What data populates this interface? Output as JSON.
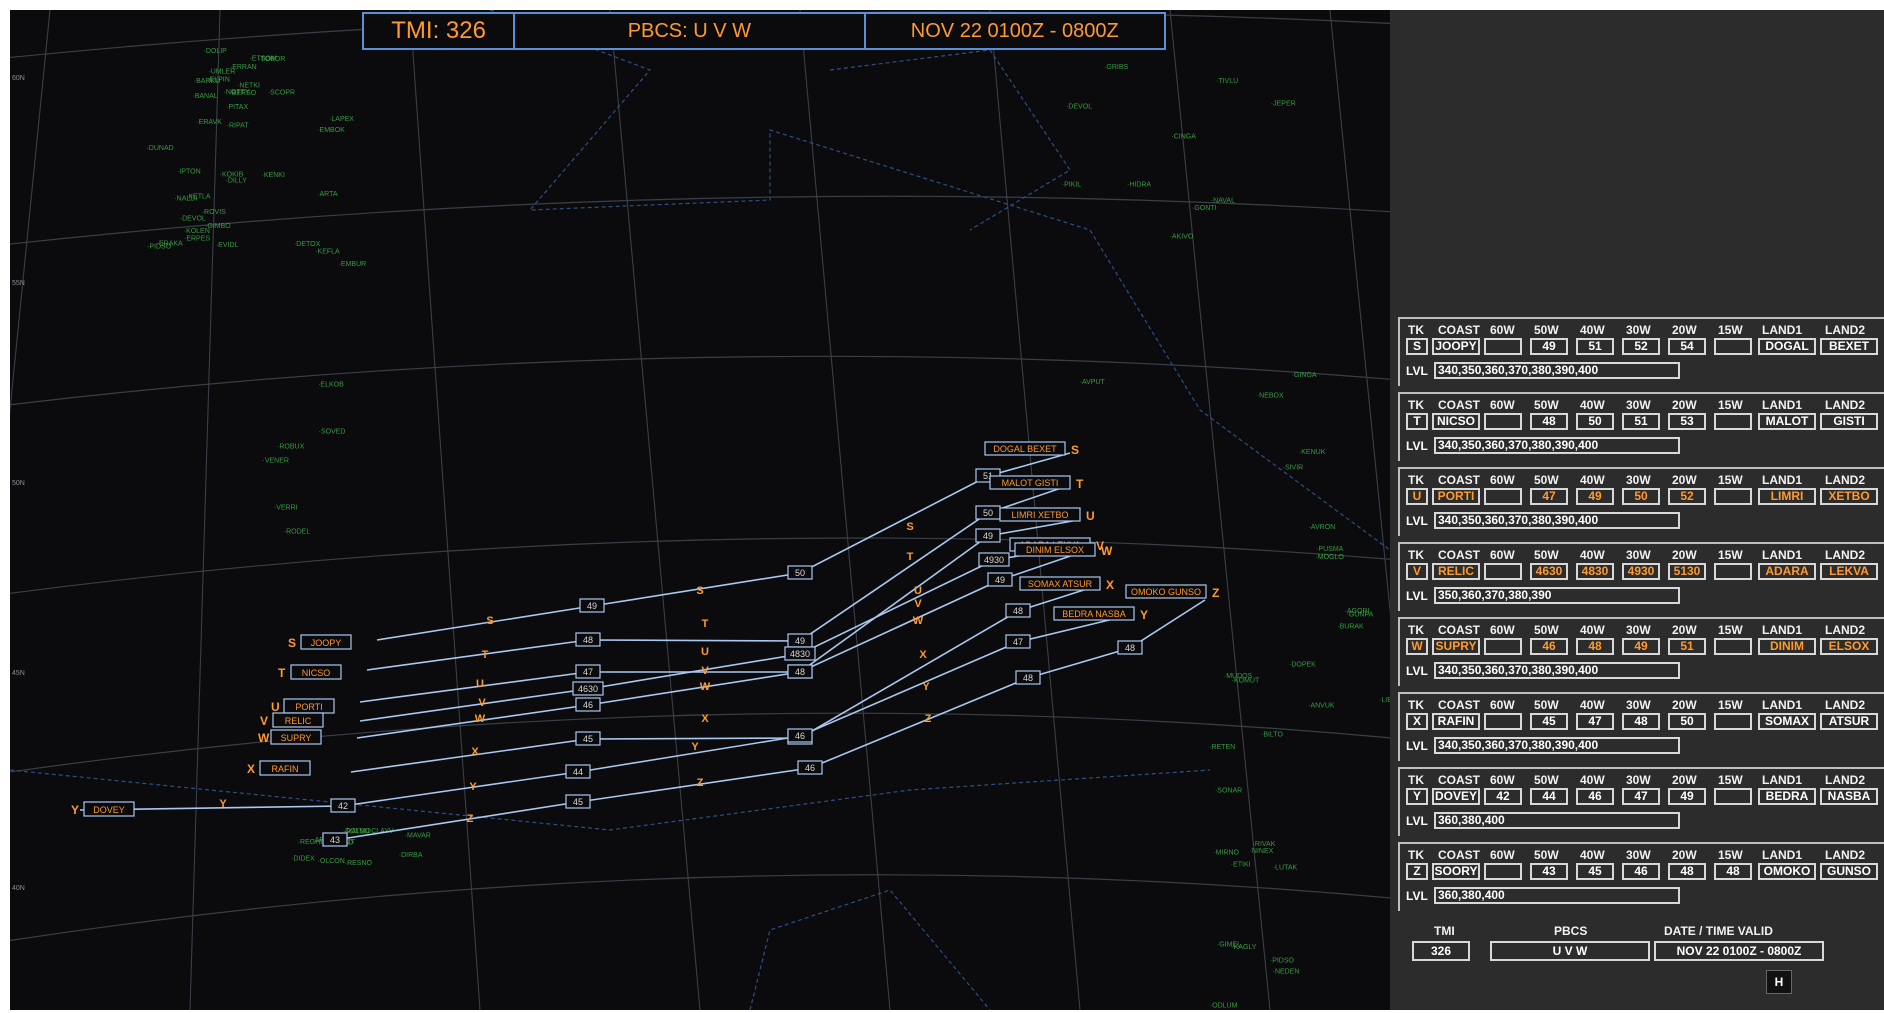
{
  "header": {
    "tmi": "TMI: 326",
    "pbcs": "PBCS:  U V W",
    "date": "NOV 22    0100Z - 0800Z"
  },
  "colors": {
    "route": "#a9c8f0",
    "accent": "#ff9a2e",
    "grid": "#3a3f47",
    "fix": "#3fb34a"
  },
  "lat_labels": [
    "60N",
    "55N",
    "50N",
    "45N",
    "40N"
  ],
  "map_tracks": [
    {
      "id": "S",
      "coast": "JOOPY",
      "fl": [
        "49",
        "50",
        "51",
        "52",
        "54"
      ],
      "land": "DOGAL  BEXET",
      "hl": false
    },
    {
      "id": "T",
      "coast": "NICSO",
      "fl": [
        "48",
        "49",
        "50",
        "51",
        "53"
      ],
      "land": "MALOT  GISTI",
      "hl": false
    },
    {
      "id": "U",
      "coast": "PORTI",
      "fl": [
        "47",
        "48",
        "49",
        "50",
        "52"
      ],
      "land": "LIMRI  XETBO",
      "hl": true
    },
    {
      "id": "V",
      "coast": "RELIC",
      "fl": [
        "4630",
        "4830",
        "4930",
        "5130"
      ],
      "land": "ADARA  LEKVA",
      "hl": true
    },
    {
      "id": "W",
      "coast": "SUPRY",
      "fl": [
        "46",
        "48",
        "49",
        "51"
      ],
      "land": "DINIM  ELSOX",
      "hl": true
    },
    {
      "id": "X",
      "coast": "RAFIN",
      "fl": [
        "45",
        "47",
        "48",
        "50"
      ],
      "land": "SOMAX  ATSUR",
      "hl": false
    },
    {
      "id": "Y",
      "coast": "DOVEY",
      "fl": [
        "42",
        "44",
        "46",
        "47",
        "49"
      ],
      "land": "BEDRA  NASBA",
      "hl": false
    },
    {
      "id": "Z",
      "coast": "SOORY",
      "fl": [
        "43",
        "45",
        "46",
        "48",
        "48"
      ],
      "land": "OMOKO  GUNSO",
      "hl": false
    }
  ],
  "green_fixes": [
    "BERSO",
    "KENKI",
    "NALDI",
    "AVPUT",
    "PUSMA",
    "KAGLY",
    "CLAYV",
    "ERRAN",
    "EMBOK",
    "KETLA",
    "GRIBS",
    "LIBOR",
    "MIRNO",
    "MAVAR",
    "NOTTY",
    "ARTA",
    "PIDSO",
    "CINGA",
    "AVRON",
    "GIMEL",
    "TOXIT",
    "ERAVK",
    "VERRI",
    "IPTON",
    "NAVAL",
    "GUNPA",
    "SONAR",
    "RATSU",
    "BARKU",
    "ELKOB",
    "DILLY",
    "AKIVO",
    "DOPEK",
    "NINEX",
    "AMTAP",
    "ETSOM",
    "ROBUX",
    "EVIDL",
    "GINGA",
    "AGORI",
    "BILTO",
    "BEGID",
    "ELPIN",
    "SOVED",
    "ERAKA",
    "PIKIL",
    "MOGLO",
    "ODLUM",
    "RESNO",
    "NETKI",
    "VENER",
    "KOKIB",
    "DEVOL",
    "BURAK",
    "NEDEN",
    "OLCON",
    "DOLIP",
    "TOBOR",
    "KOLEN",
    "JEPER",
    "KENUK",
    "ETIKI",
    "REGHI",
    "UMLER",
    "LAPEX",
    "DUNAD",
    "TIVLU",
    "SIVIR",
    "RIVAK",
    "DIDEX",
    "PITAX",
    "RODEL",
    "ROVIS",
    "HIDRA",
    "MUDOS",
    "RETEN",
    "ARMED",
    "BANAL",
    "DETOX",
    "ERPES",
    "GONTI",
    "KOMUT",
    "LUTAK",
    "DIRBA",
    "RIPAT",
    "EMBUR",
    "DEVOL",
    "NEBOX",
    "ANVUK",
    "PIDSO",
    "DOLMO",
    "SCOPR",
    "KEFLA",
    "GIMBO"
  ],
  "panel": {
    "headers": [
      "TK",
      "COAST",
      "60W",
      "50W",
      "40W",
      "30W",
      "20W",
      "15W",
      "LAND1",
      "LAND2"
    ],
    "lvl_label": "LVL",
    "tracks": [
      {
        "tk": "S",
        "coast": "JOOPY",
        "w60": "",
        "w50": "49",
        "w40": "51",
        "w30": "52",
        "w20": "54",
        "w15": "",
        "land1": "DOGAL",
        "land2": "BEXET",
        "lvl": "340,350,360,370,380,390,400",
        "hl": false
      },
      {
        "tk": "T",
        "coast": "NICSO",
        "w60": "",
        "w50": "48",
        "w40": "50",
        "w30": "51",
        "w20": "53",
        "w15": "",
        "land1": "MALOT",
        "land2": "GISTI",
        "lvl": "340,350,360,370,380,390,400",
        "hl": false
      },
      {
        "tk": "U",
        "coast": "PORTI",
        "w60": "",
        "w50": "47",
        "w40": "49",
        "w30": "50",
        "w20": "52",
        "w15": "",
        "land1": "LIMRI",
        "land2": "XETBO",
        "lvl": "340,350,360,370,380,390,400",
        "hl": true
      },
      {
        "tk": "V",
        "coast": "RELIC",
        "w60": "",
        "w50": "4630",
        "w40": "4830",
        "w30": "4930",
        "w20": "5130",
        "w15": "",
        "land1": "ADARA",
        "land2": "LEKVA",
        "lvl": "350,360,370,380,390",
        "hl": true
      },
      {
        "tk": "W",
        "coast": "SUPRY",
        "w60": "",
        "w50": "46",
        "w40": "48",
        "w30": "49",
        "w20": "51",
        "w15": "",
        "land1": "DINIM",
        "land2": "ELSOX",
        "lvl": "340,350,360,370,380,390,400",
        "hl": true
      },
      {
        "tk": "X",
        "coast": "RAFIN",
        "w60": "",
        "w50": "45",
        "w40": "47",
        "w30": "48",
        "w20": "50",
        "w15": "",
        "land1": "SOMAX",
        "land2": "ATSUR",
        "lvl": "340,350,360,370,380,390,400",
        "hl": false
      },
      {
        "tk": "Y",
        "coast": "DOVEY",
        "w60": "42",
        "w50": "44",
        "w40": "46",
        "w30": "47",
        "w20": "49",
        "w15": "",
        "land1": "BEDRA",
        "land2": "NASBA",
        "lvl": "360,380,400",
        "hl": false
      },
      {
        "tk": "Z",
        "coast": "SOORY",
        "w60": "",
        "w50": "43",
        "w40": "45",
        "w30": "46",
        "w20": "48",
        "w15": "48",
        "land1": "OMOKO",
        "land2": "GUNSO",
        "lvl": "360,380,400",
        "hl": false
      }
    ],
    "footer": {
      "tmi_label": "TMI",
      "tmi": "326",
      "pbcs_label": "PBCS",
      "pbcs": "U V W",
      "date_label": "DATE / TIME VALID",
      "date": "NOV 22  0100Z - 0800Z",
      "h_button": "H"
    }
  }
}
